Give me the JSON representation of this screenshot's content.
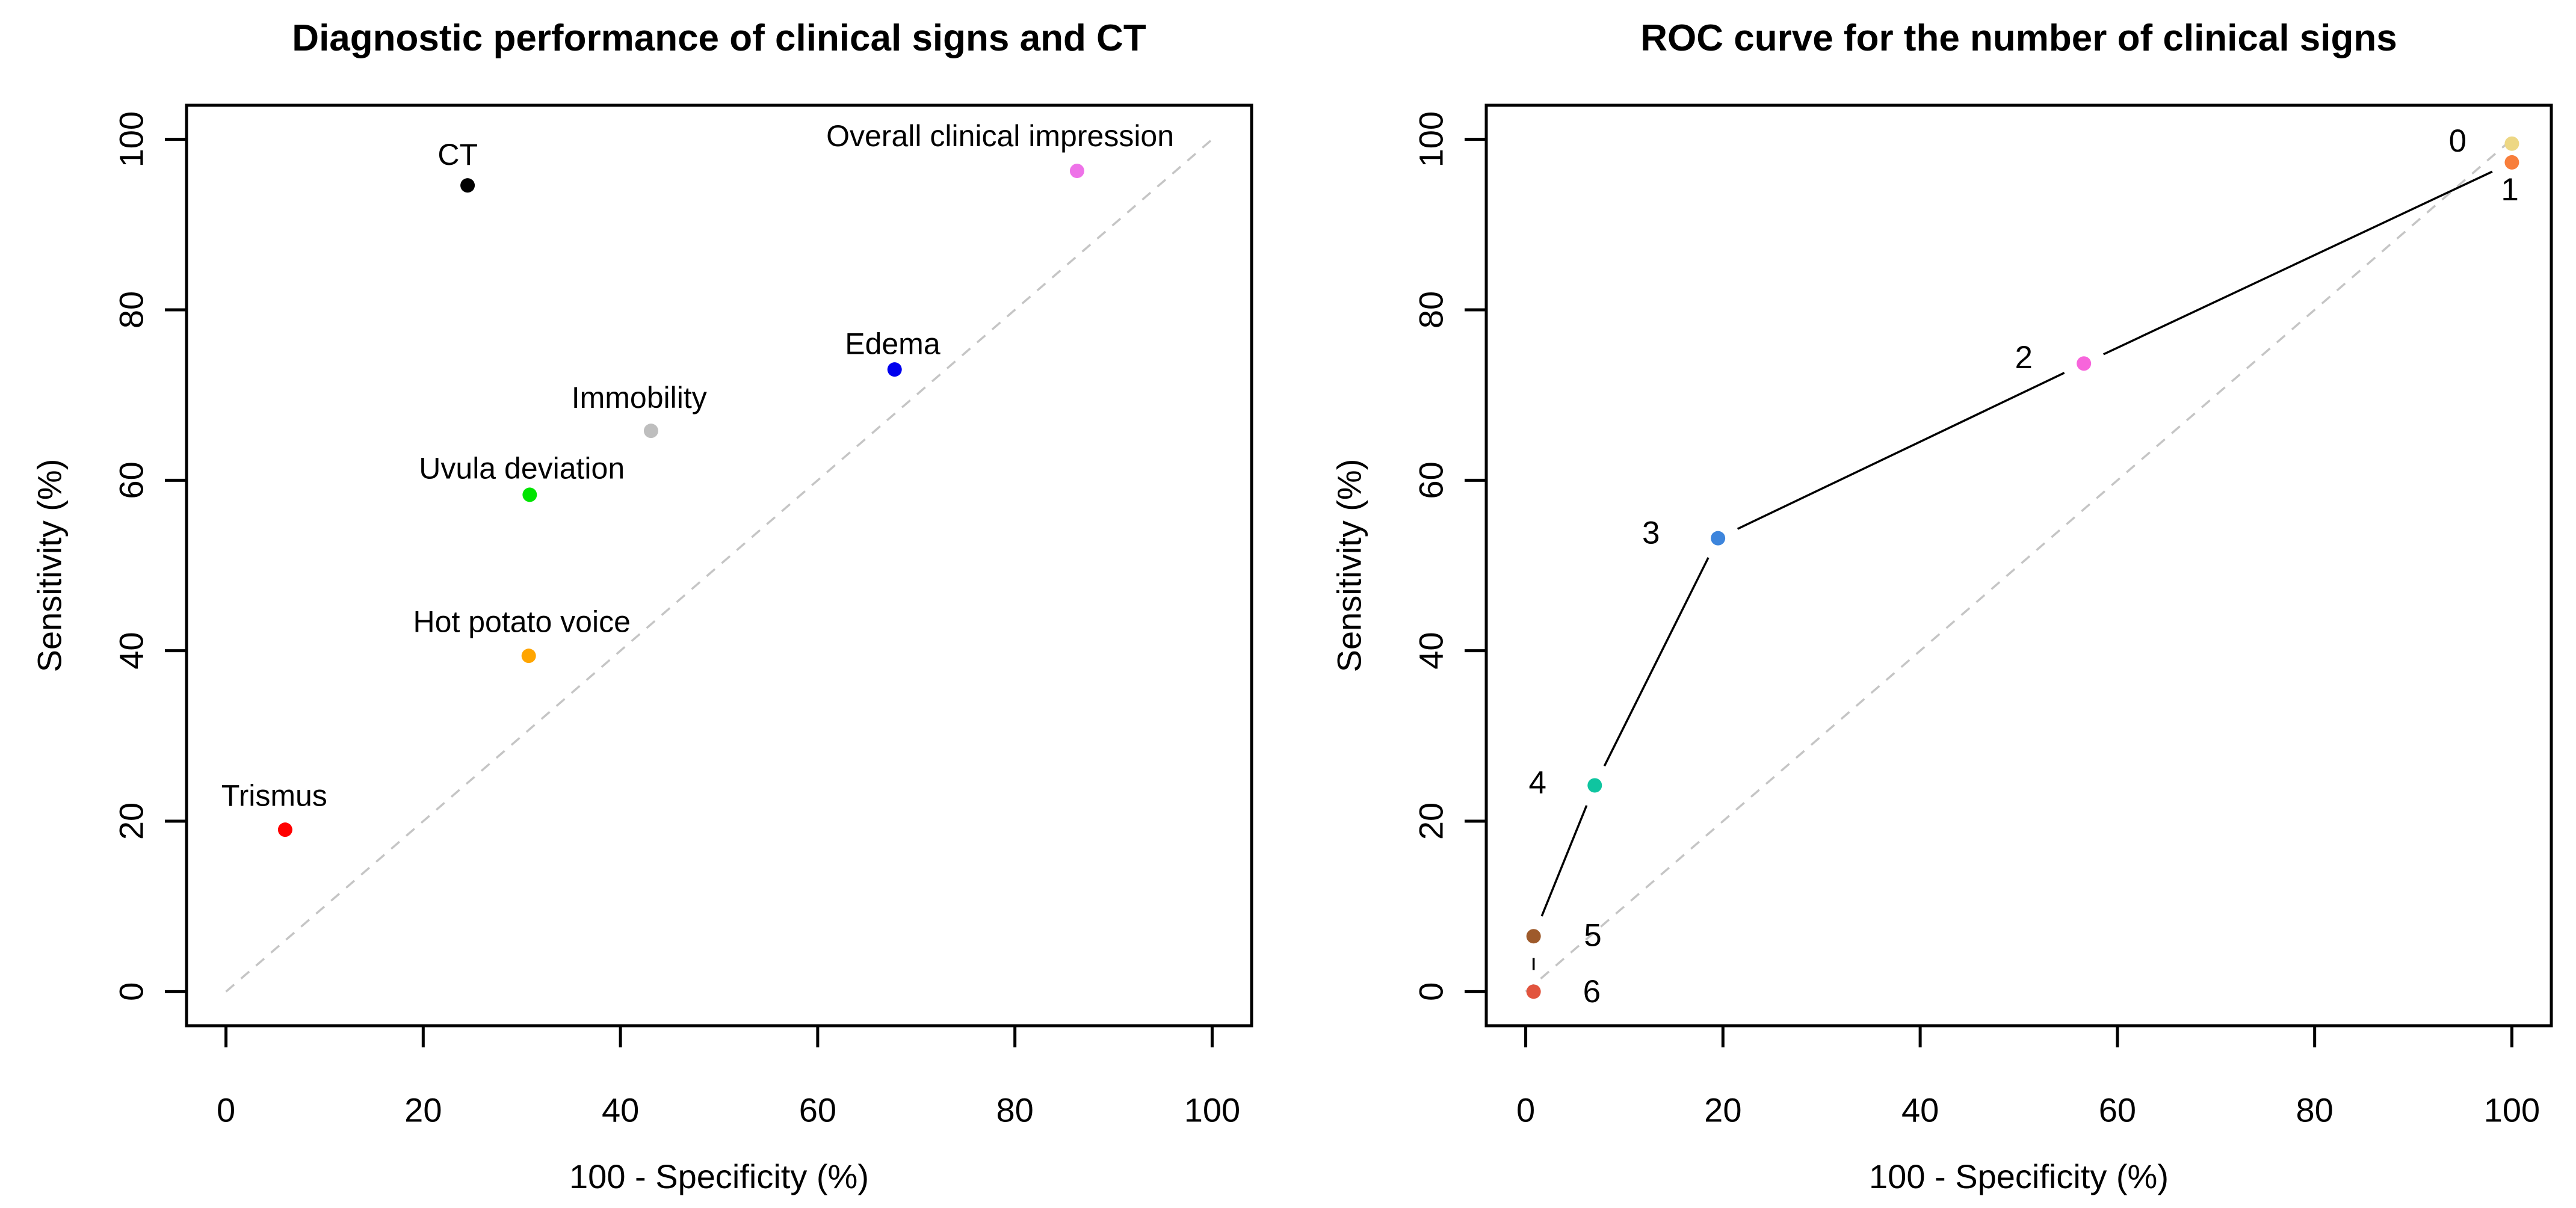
{
  "figure": {
    "background": "#FFFFFF",
    "text_color": "#000000",
    "diagonal_color": "#C5C5C5",
    "roc_line_color": "#000000"
  },
  "chart_data": [
    {
      "type": "scatter",
      "title": "Diagnostic performance of clinical signs and CT",
      "xlabel": "100 - Specificity (%)",
      "ylabel": "Sensitivity (%)",
      "xlim": [
        0,
        100
      ],
      "ylim": [
        0,
        100
      ],
      "xticks": [
        0,
        20,
        40,
        60,
        80,
        100
      ],
      "yticks": [
        0,
        20,
        40,
        60,
        80,
        100
      ],
      "grid": false,
      "legend": "none",
      "diagonal_reference": true,
      "connect_points": false,
      "points": [
        {
          "label": "Trismus",
          "x": 6,
          "y": 19,
          "color": "#FF0000",
          "label_x": 4.9,
          "label_y": 23
        },
        {
          "label": "Hot potato voice",
          "x": 30.7,
          "y": 39.4,
          "color": "#FFA500",
          "label_x": 30,
          "label_y": 43.4
        },
        {
          "label": "Uvula deviation",
          "x": 30.8,
          "y": 58.3,
          "color": "#00E400",
          "label_x": 30,
          "label_y": 61.4
        },
        {
          "label": "Immobility",
          "x": 43.1,
          "y": 65.8,
          "color": "#BEBEBE",
          "label_x": 41.9,
          "label_y": 69.7
        },
        {
          "label": "Edema",
          "x": 67.8,
          "y": 73,
          "color": "#0000EE",
          "label_x": 67.6,
          "label_y": 76
        },
        {
          "label": "CT",
          "x": 24.5,
          "y": 94.6,
          "color": "#000000",
          "label_x": 23.5,
          "label_y": 98.2
        },
        {
          "label": "Overall clinical impression",
          "x": 86.3,
          "y": 96.3,
          "color": "#EE72E8",
          "label_x": 78.5,
          "label_y": 100.4
        }
      ]
    },
    {
      "type": "line",
      "title": "ROC curve for the number of clinical signs",
      "xlabel": "100 - Specificity (%)",
      "ylabel": "Sensitivity (%)",
      "xlim": [
        0,
        100
      ],
      "ylim": [
        0,
        100
      ],
      "xticks": [
        0,
        20,
        40,
        60,
        80,
        100
      ],
      "yticks": [
        0,
        20,
        40,
        60,
        80,
        100
      ],
      "grid": false,
      "legend": "none",
      "diagonal_reference": true,
      "connect_points": true,
      "points": [
        {
          "label": "0",
          "x": 100,
          "y": 99.5,
          "color": "#EDD784",
          "label_x": 94.5,
          "label_y": 99.8
        },
        {
          "label": "1",
          "x": 100,
          "y": 97.3,
          "color": "#F87E3B",
          "label_x": 99.8,
          "label_y": 94.1
        },
        {
          "label": "2",
          "x": 56.6,
          "y": 73.7,
          "color": "#F765DB",
          "label_x": 50.5,
          "label_y": 74.4
        },
        {
          "label": "3",
          "x": 19.5,
          "y": 53.2,
          "color": "#3D85DC",
          "label_x": 12.7,
          "label_y": 53.8
        },
        {
          "label": "4",
          "x": 7,
          "y": 24.2,
          "color": "#0FC5A0",
          "label_x": 1.2,
          "label_y": 24.5
        },
        {
          "label": "5",
          "x": 0.8,
          "y": 6.5,
          "color": "#9E5A2B",
          "label_x": 6.8,
          "label_y": 6.6
        },
        {
          "label": "6",
          "x": 0.8,
          "y": 0,
          "color": "#E2543E",
          "label_x": 6.7,
          "label_y": 0
        }
      ]
    }
  ]
}
